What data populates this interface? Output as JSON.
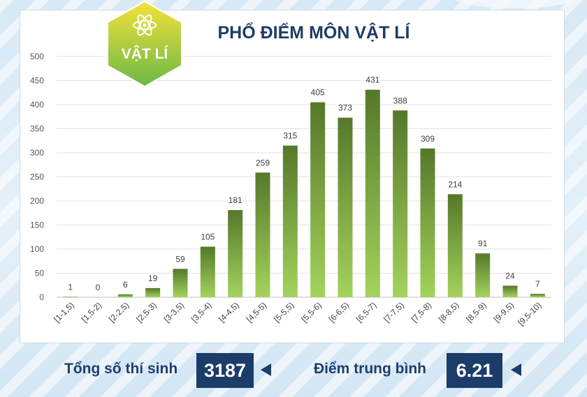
{
  "badge": {
    "label": "VẬT LÍ",
    "icon": "atom-icon"
  },
  "colors": {
    "bar_top": "#55782a",
    "bar_bottom": "#a4d35c",
    "navy": "#1c3c69",
    "title": "#1f3c66",
    "badge_top": "#f4e23a",
    "badge_bottom": "#6cb846"
  },
  "chart_data": {
    "type": "bar",
    "title": "PHỔ ĐIỂM MÔN VẬT LÍ",
    "xlabel": "",
    "ylabel": "",
    "ylim": [
      0,
      500
    ],
    "yticks": [
      0,
      50,
      100,
      150,
      200,
      250,
      300,
      350,
      400,
      450,
      500
    ],
    "grid": true,
    "categories": [
      "[1-1,5)",
      "[1,5-2)",
      "[2-2,5)",
      "[2,5-3)",
      "[3-3,5)",
      "[3,5-4)",
      "[4-4,5)",
      "[4,5-5)",
      "[5-5,5)",
      "[5,5-6)",
      "[6-6,5)",
      "[6,5-7)",
      "[7-7,5)",
      "[7,5-8)",
      "[8-8,5)",
      "[8,5-9)",
      "[9-9,5)",
      "[9,5-10)"
    ],
    "values": [
      1,
      0,
      6,
      19,
      59,
      105,
      181,
      259,
      315,
      405,
      373,
      431,
      388,
      309,
      214,
      91,
      24,
      7
    ]
  },
  "summary": {
    "total_label": "Tổng số thí sinh",
    "total_value": "3187",
    "avg_label": "Điểm trung bình",
    "avg_value": "6.21"
  }
}
